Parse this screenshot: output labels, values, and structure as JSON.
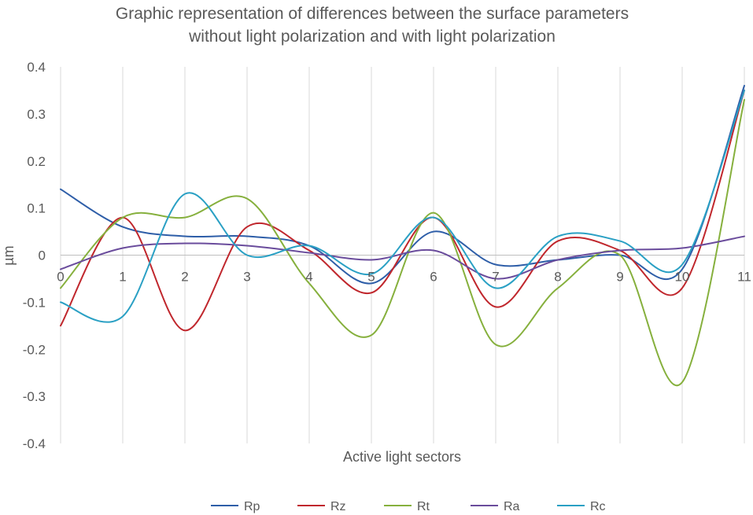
{
  "chart_data": {
    "type": "line",
    "title": [
      "Graphic representation of differences between the surface parameters",
      "without light polarization and with light polarization"
    ],
    "xlabel": "Active light sectors",
    "ylabel": "µm",
    "x": [
      0,
      1,
      2,
      3,
      4,
      5,
      6,
      7,
      8,
      9,
      10,
      11
    ],
    "x_tick_labels": [
      "0",
      "1",
      "2",
      "3",
      "4",
      "5",
      "6",
      "7",
      "8",
      "9",
      "10",
      "11"
    ],
    "ylim": [
      -0.4,
      0.4
    ],
    "y_ticks": [
      0.4,
      0.3,
      0.2,
      0.1,
      0,
      -0.1,
      -0.2,
      -0.3,
      -0.4
    ],
    "y_tick_labels": [
      "0.4",
      "0.3",
      "0.2",
      "0.1",
      "0",
      "-0.1",
      "-0.2",
      "-0.3",
      "-0.4"
    ],
    "grid": "vertical",
    "smooth": true,
    "legend_position": "bottom",
    "series": [
      {
        "name": "Rp",
        "color": "#2e5ea8",
        "values": [
          0.14,
          0.06,
          0.04,
          0.04,
          0.02,
          -0.06,
          0.05,
          -0.02,
          -0.01,
          0.0,
          -0.03,
          0.36
        ]
      },
      {
        "name": "Rz",
        "color": "#c0272d",
        "values": [
          -0.15,
          0.08,
          -0.16,
          0.06,
          0.01,
          -0.08,
          0.08,
          -0.11,
          0.03,
          0.01,
          -0.07,
          0.35
        ]
      },
      {
        "name": "Rt",
        "color": "#86b03d",
        "values": [
          -0.07,
          0.08,
          0.08,
          0.12,
          -0.06,
          -0.17,
          0.09,
          -0.19,
          -0.07,
          0.0,
          -0.27,
          0.33
        ]
      },
      {
        "name": "Ra",
        "color": "#6a4c9c",
        "values": [
          -0.03,
          0.015,
          0.025,
          0.02,
          0.005,
          -0.01,
          0.01,
          -0.05,
          -0.01,
          0.01,
          0.015,
          0.04
        ]
      },
      {
        "name": "Rc",
        "color": "#2aa0c4",
        "values": [
          -0.1,
          -0.13,
          0.13,
          0.0,
          0.02,
          -0.04,
          0.08,
          -0.07,
          0.04,
          0.03,
          -0.02,
          0.35
        ]
      }
    ]
  }
}
